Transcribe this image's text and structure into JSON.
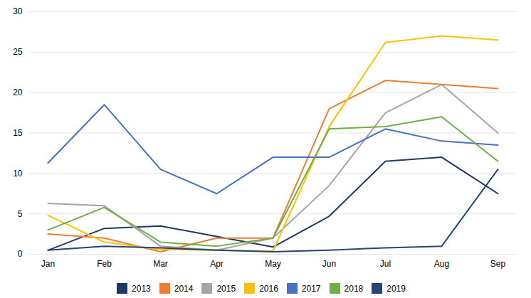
{
  "chart_data": {
    "type": "line",
    "categories": [
      "Jan",
      "Feb",
      "Mar",
      "Apr",
      "May",
      "Jun",
      "Jul",
      "Aug",
      "Sep"
    ],
    "series": [
      {
        "name": "2013",
        "color": "#203864",
        "values": [
          0.5,
          3.2,
          3.5,
          2.2,
          0.9,
          4.7,
          11.5,
          12.0,
          7.5
        ]
      },
      {
        "name": "2014",
        "color": "#ED7D31",
        "values": [
          2.5,
          2.0,
          0.3,
          2.0,
          2.0,
          18.0,
          21.5,
          21.0,
          20.5
        ]
      },
      {
        "name": "2015",
        "color": "#A5A5A5",
        "values": [
          6.3,
          6.0,
          1.0,
          0.5,
          2.0,
          8.5,
          17.5,
          21.0,
          15.0
        ]
      },
      {
        "name": "2016",
        "color": "#FFC000",
        "values": [
          4.8,
          1.5,
          0.6,
          0.5,
          0.4,
          15.8,
          26.2,
          27.0,
          26.5
        ]
      },
      {
        "name": "2017",
        "color": "#4472C4",
        "values": [
          11.3,
          18.5,
          10.5,
          7.5,
          12.0,
          12.0,
          15.5,
          14.0,
          13.5
        ]
      },
      {
        "name": "2018",
        "color": "#70AD47",
        "values": [
          3.0,
          5.8,
          1.5,
          1.0,
          2.0,
          15.5,
          15.8,
          17.0,
          11.5
        ]
      },
      {
        "name": "2019",
        "color": "#264478",
        "values": [
          0.5,
          1.0,
          0.8,
          0.5,
          0.3,
          0.5,
          0.8,
          1.0,
          10.5
        ]
      }
    ],
    "ylim": [
      0,
      30
    ],
    "yticks": [
      0,
      5,
      10,
      15,
      20,
      25,
      30
    ],
    "grid": true,
    "legend": "bottom"
  }
}
